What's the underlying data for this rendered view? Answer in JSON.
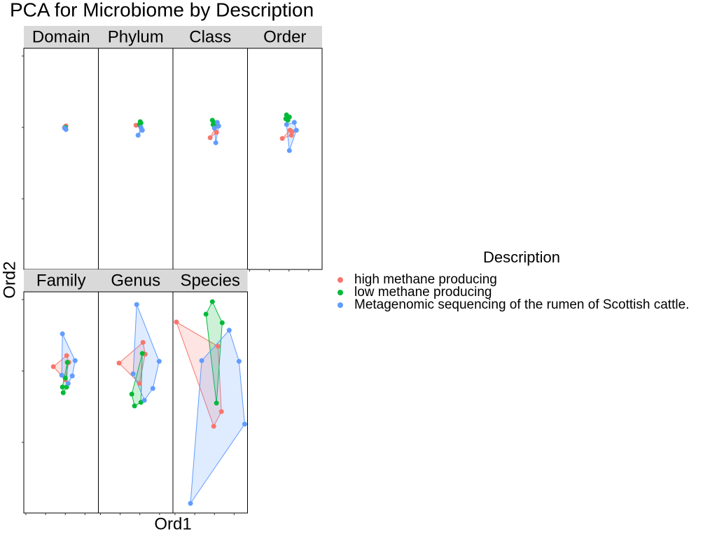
{
  "chart_data": {
    "type": "scatter",
    "title": "PCA for Microbiome by Description",
    "xlabel": "Ord1",
    "ylabel": "Ord2",
    "legend_title": "Description",
    "xlim": [
      -0.421,
      0.336
    ],
    "xticks": [
      -0.4,
      -0.2,
      0,
      0.2
    ],
    "ylim": [
      -0.398,
      0.2216
    ],
    "yticks": [
      -0.2,
      0,
      0.2
    ],
    "groups": [
      {
        "name": "high methane producing",
        "color": "#F8766D"
      },
      {
        "name": "low methane producing",
        "color": "#00BA38"
      },
      {
        "name": "Metagenomic sequencing of the rumen of Scottish cattle.",
        "color": "#619CFF"
      }
    ],
    "facets": [
      {
        "label": "Domain",
        "series": [
          {
            "x": [
              0,
              0.007,
              -0.007
            ],
            "y": [
              0.002,
              0.004,
              0
            ]
          },
          {
            "x": [
              0
            ],
            "y": [
              0
            ]
          },
          {
            "x": [
              0.007,
              -0.007
            ],
            "y": [
              -0.006,
              -0.002
            ]
          }
        ]
      },
      {
        "label": "Phylum",
        "series": [
          {
            "x": [
              -0.039,
              0.018
            ],
            "y": [
              0.006,
              -0.006
            ]
          },
          {
            "x": [
              0.004,
              0.011,
              -0.004
            ],
            "y": [
              0.016,
              0.012,
              0.008
            ]
          },
          {
            "x": [
              -0.018,
              0.025,
              0.011
            ],
            "y": [
              -0.022,
              -0.008,
              0
            ]
          }
        ]
      },
      {
        "label": "Class",
        "series": [
          {
            "x": [
              -0.043,
              0.021,
              0.014
            ],
            "y": [
              -0.029,
              -0.014,
              0.002
            ]
          },
          {
            "x": [
              -0.021,
              -0.007,
              -0.014,
              0
            ],
            "y": [
              0.02,
              0.014,
              0.008,
              0.002
            ]
          },
          {
            "x": [
              0.014,
              0.043,
              0.029,
              0
            ],
            "y": [
              -0.043,
              0.004,
              0.014,
              -0.002
            ]
          }
        ]
      },
      {
        "label": "Order",
        "series": [
          {
            "x": [
              -0.068,
              0.025,
              0.011,
              0.032
            ],
            "y": [
              -0.031,
              -0.022,
              -0.008,
              -0.012
            ]
          },
          {
            "x": [
              -0.025,
              0.004,
              -0.032,
              -0.011
            ],
            "y": [
              0.035,
              0.029,
              0.024,
              0.02
            ]
          },
          {
            "x": [
              0.004,
              0.075,
              0.054,
              -0.025
            ],
            "y": [
              -0.065,
              -0.008,
              0.014,
              0.008
            ]
          }
        ]
      },
      {
        "label": "Family",
        "series": [
          {
            "x": [
              -0.121,
              0.014,
              0.036,
              0
            ],
            "y": [
              0.012,
              0.043,
              0.024,
              -0.025
            ]
          },
          {
            "x": [
              0.021,
              -0.029,
              0.014,
              -0.021,
              0
            ],
            "y": [
              0.024,
              -0.045,
              -0.045,
              -0.061,
              -0.02
            ]
          },
          {
            "x": [
              -0.029,
              0.1,
              0.071,
              0.029,
              -0.036
            ],
            "y": [
              0.104,
              0.029,
              -0.014,
              -0.035,
              -0.012
            ]
          }
        ]
      },
      {
        "label": "Genus",
        "series": [
          {
            "x": [
              -0.211,
              0.032,
              0.054,
              -0.004
            ],
            "y": [
              0.022,
              0.08,
              0.047,
              -0.035
            ]
          },
          {
            "x": [
              0.025,
              -0.082,
              -0.054,
              0.011
            ],
            "y": [
              0.049,
              -0.065,
              -0.098,
              -0.088
            ]
          },
          {
            "x": [
              -0.032,
              0.196,
              0.132,
              0.046,
              -0.068
            ],
            "y": [
              0.186,
              0.027,
              -0.049,
              -0.082,
              -0.008
            ]
          }
        ]
      },
      {
        "label": "Species",
        "series": [
          {
            "x": [
              -0.386,
              0.036,
              0.071,
              -0.007
            ],
            "y": [
              0.137,
              0.069,
              -0.114,
              -0.155
            ]
          },
          {
            "x": [
              -0.021,
              0.079,
              -0.086,
              0.021
            ],
            "y": [
              0.194,
              0.135,
              0.159,
              -0.09
            ]
          },
          {
            "x": [
              0.15,
              0.25,
              0.307,
              -0.243,
              -0.129
            ],
            "y": [
              0.114,
              0.027,
              -0.149,
              -0.371,
              0.029
            ]
          }
        ]
      }
    ]
  }
}
